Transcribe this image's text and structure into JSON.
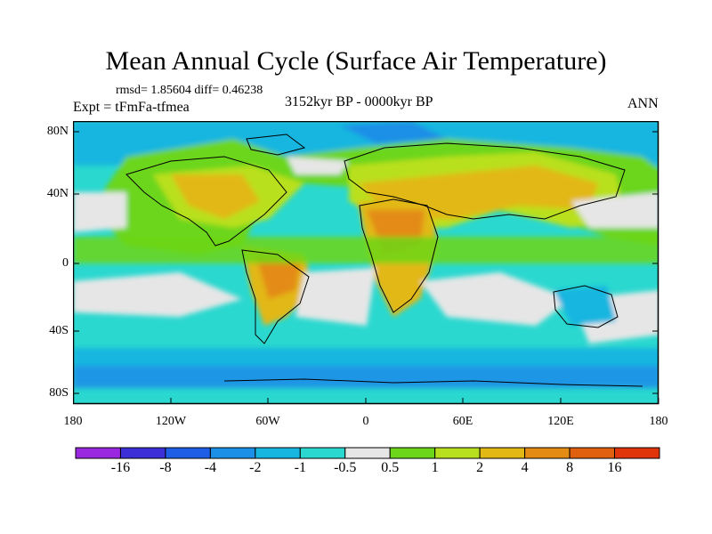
{
  "title": "Mean Annual Cycle (Surface Air Temperature)",
  "stats": "rmsd= 1.85604 diff= 0.46238",
  "experiment": "Expt = tFmFa-tfmea",
  "period": "3152kyr BP - 0000kyr BP",
  "season": "ANN",
  "lat_labels": [
    "80N",
    "40N",
    "0",
    "40S",
    "80S"
  ],
  "lon_labels": [
    "180",
    "120W",
    "60W",
    "0",
    "60E",
    "120E",
    "180"
  ],
  "colorbar": {
    "labels": [
      "-16",
      "-8",
      "-4",
      "-2",
      "-1",
      "-0.5",
      "0.5",
      "1",
      "2",
      "4",
      "8",
      "16"
    ],
    "colors": [
      "#9a28e0",
      "#3c2fd8",
      "#1e5ee6",
      "#1c8fe6",
      "#17b6e0",
      "#2ad8cf",
      "#e6e6e6",
      "#6cd61a",
      "#b9e01e",
      "#e2b814",
      "#e38b12",
      "#e0600f",
      "#e0350a"
    ]
  },
  "map_colors": {
    "ocean_mid": "#2ad8cf",
    "ocean_cool": "#17b6e0",
    "ocean_cold": "#1c8fe6",
    "neutral": "#e6e6e6",
    "warm1": "#6cd61a",
    "warm2": "#b9e01e",
    "warm3": "#e2b814",
    "warm4": "#e38b12"
  }
}
